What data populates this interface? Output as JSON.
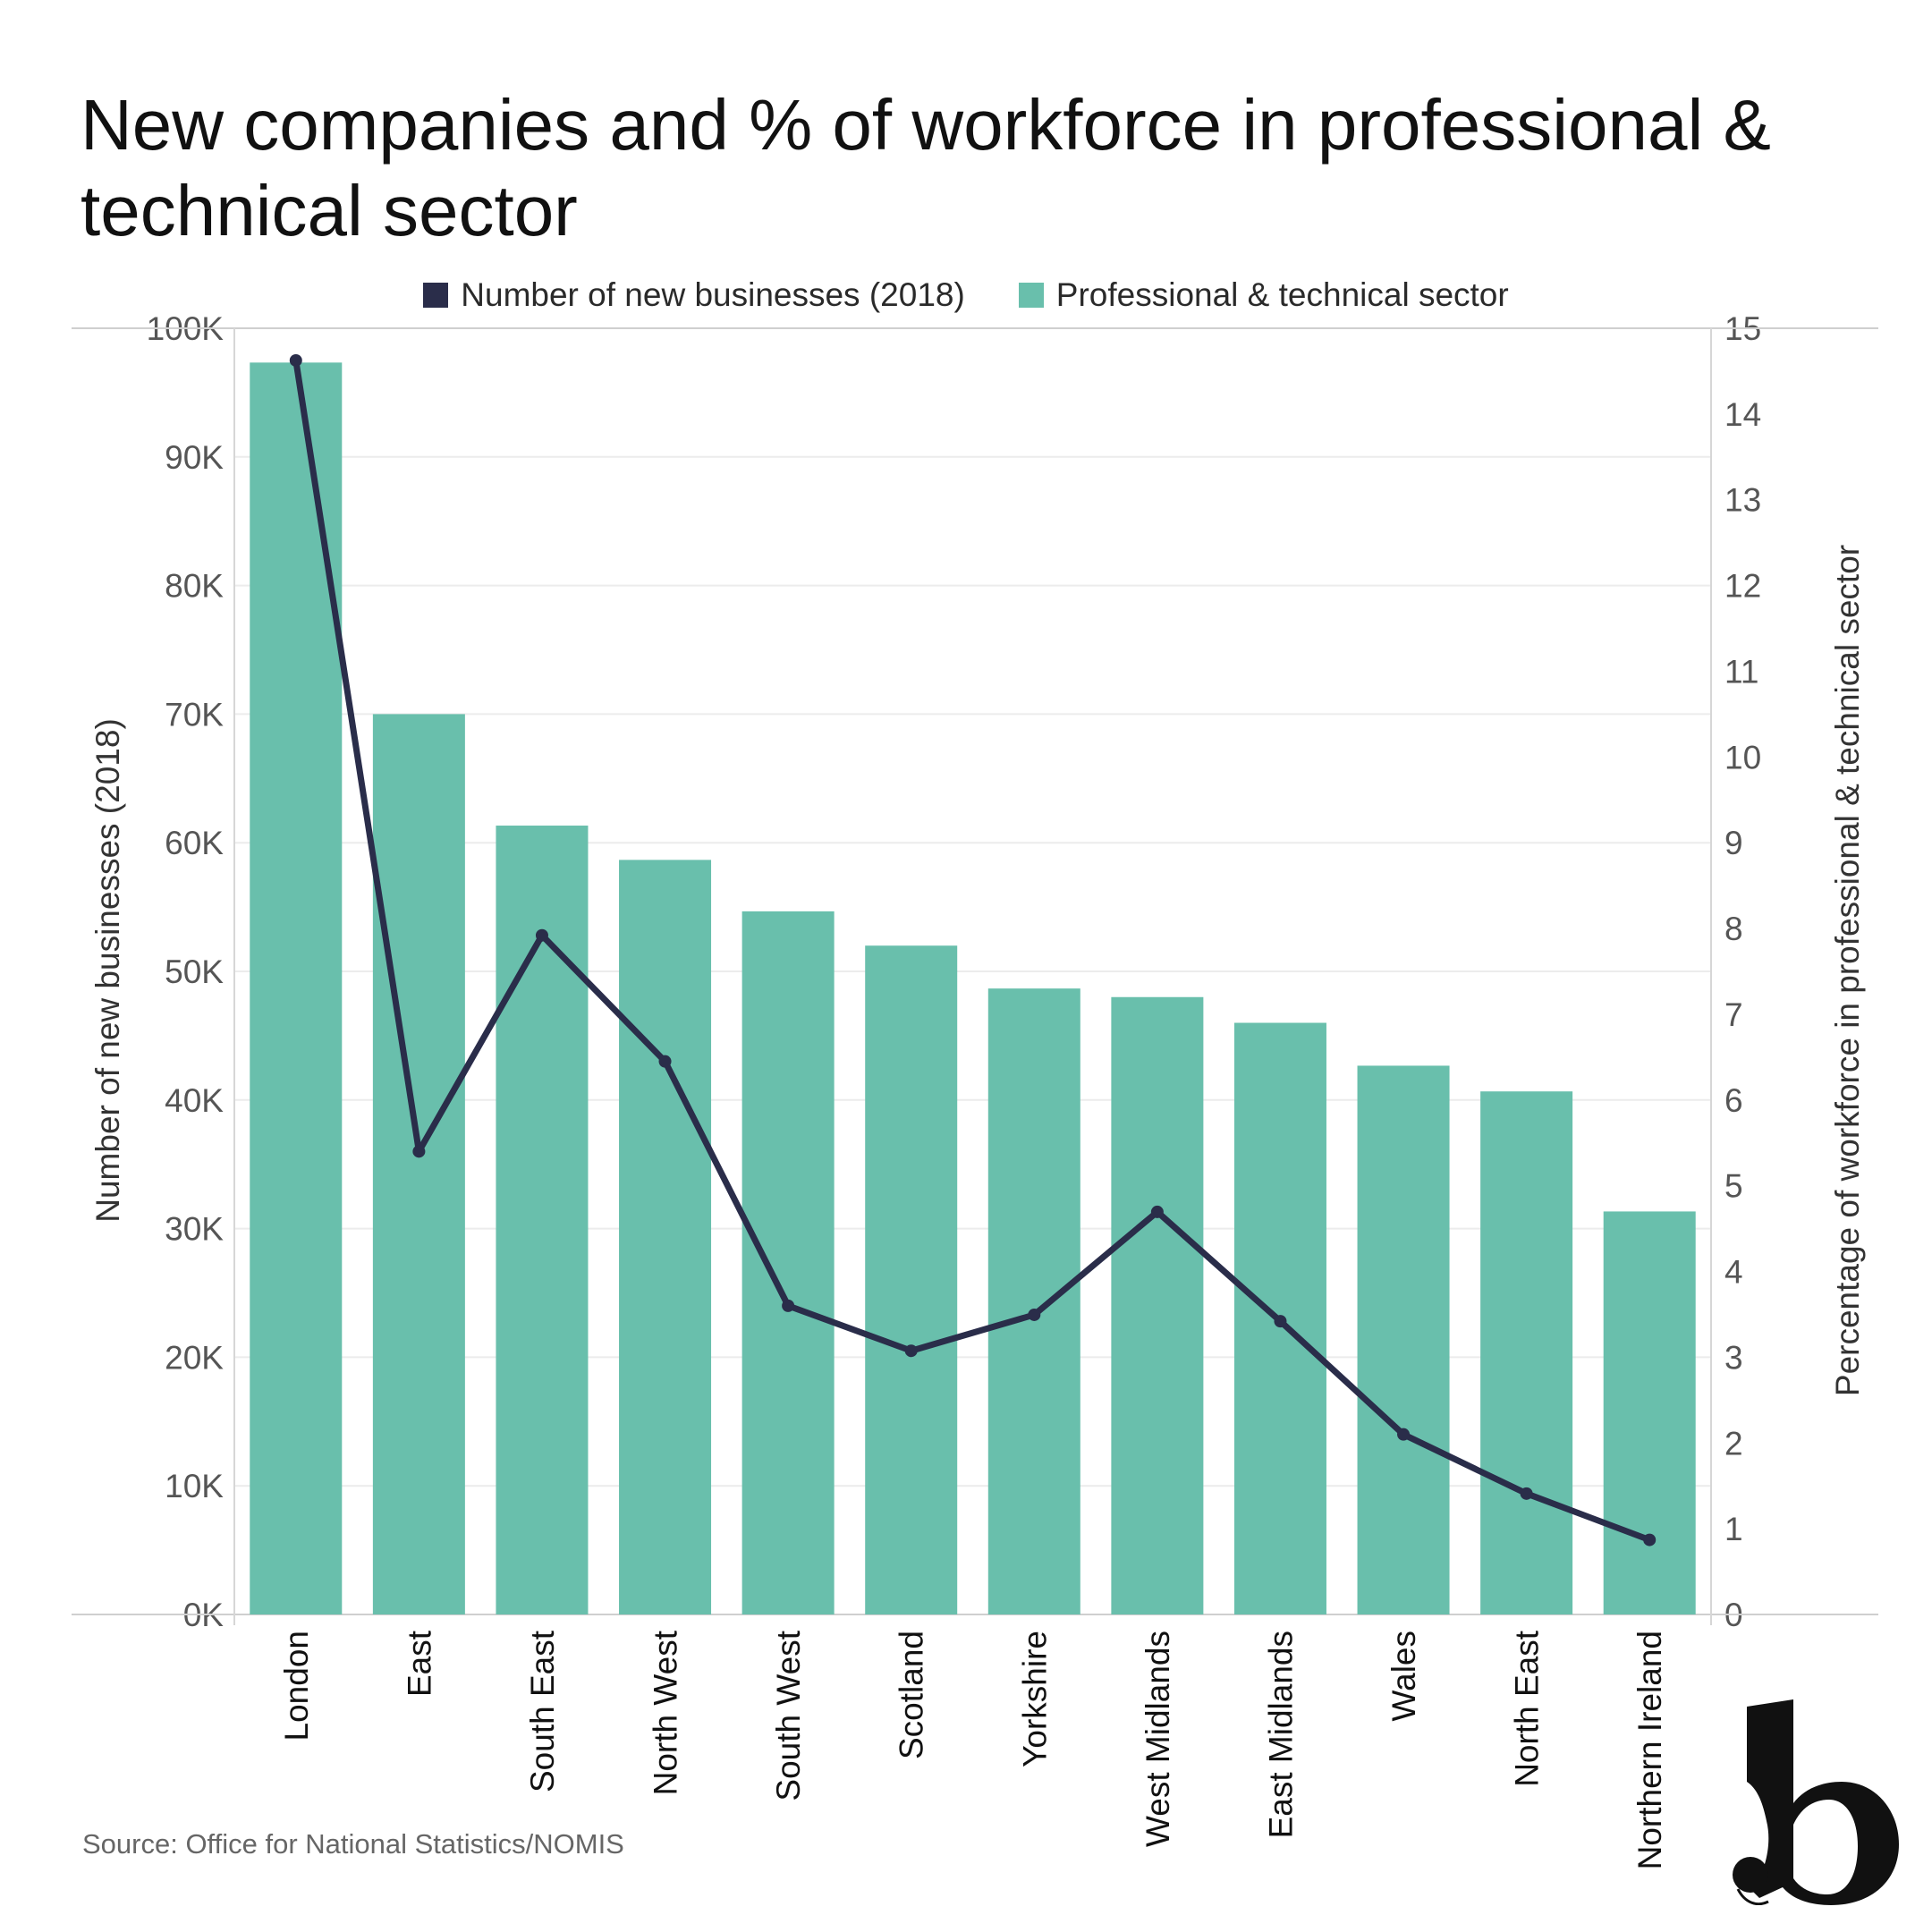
{
  "title": "New companies and % of workforce in professional & technical sector",
  "source": "Source: Office for National Statistics/NOMIS",
  "colors": {
    "bars": "#69bfac",
    "line": "#2a2d4a",
    "grid": "#ececec",
    "axis_text": "#555555"
  },
  "chart_data": {
    "type": "bar",
    "categories": [
      "London",
      "East",
      "South East",
      "North West",
      "South West",
      "Scotland",
      "Yorkshire",
      "West Midlands",
      "East Midlands",
      "Wales",
      "North East",
      "Northern Ireland"
    ],
    "series": [
      {
        "name": "Professional & technical sector",
        "type": "bar",
        "axis": "right",
        "values": [
          14.6,
          10.5,
          9.2,
          8.8,
          8.2,
          7.8,
          7.3,
          7.2,
          6.9,
          6.4,
          6.1,
          4.7
        ]
      },
      {
        "name": "Number of new businesses (2018)",
        "type": "line",
        "axis": "left",
        "values": [
          97500,
          36000,
          52800,
          43000,
          24000,
          20500,
          23300,
          31300,
          22800,
          14000,
          9400,
          5800
        ]
      }
    ],
    "ylabel_left": "Number of new businesses (2018)",
    "ylabel_right": "Percentage of workforce in professional & technical sector",
    "ylim_left": [
      0,
      100000
    ],
    "ylim_right": [
      0,
      15
    ],
    "left_ticks": [
      "0K",
      "10K",
      "20K",
      "30K",
      "40K",
      "50K",
      "60K",
      "70K",
      "80K",
      "90K",
      "100K"
    ],
    "right_ticks": [
      "0",
      "1",
      "2",
      "3",
      "4",
      "5",
      "6",
      "7",
      "8",
      "9",
      "10",
      "11",
      "12",
      "13",
      "14",
      "15"
    ],
    "grid": true,
    "legend_position": "top-center"
  }
}
